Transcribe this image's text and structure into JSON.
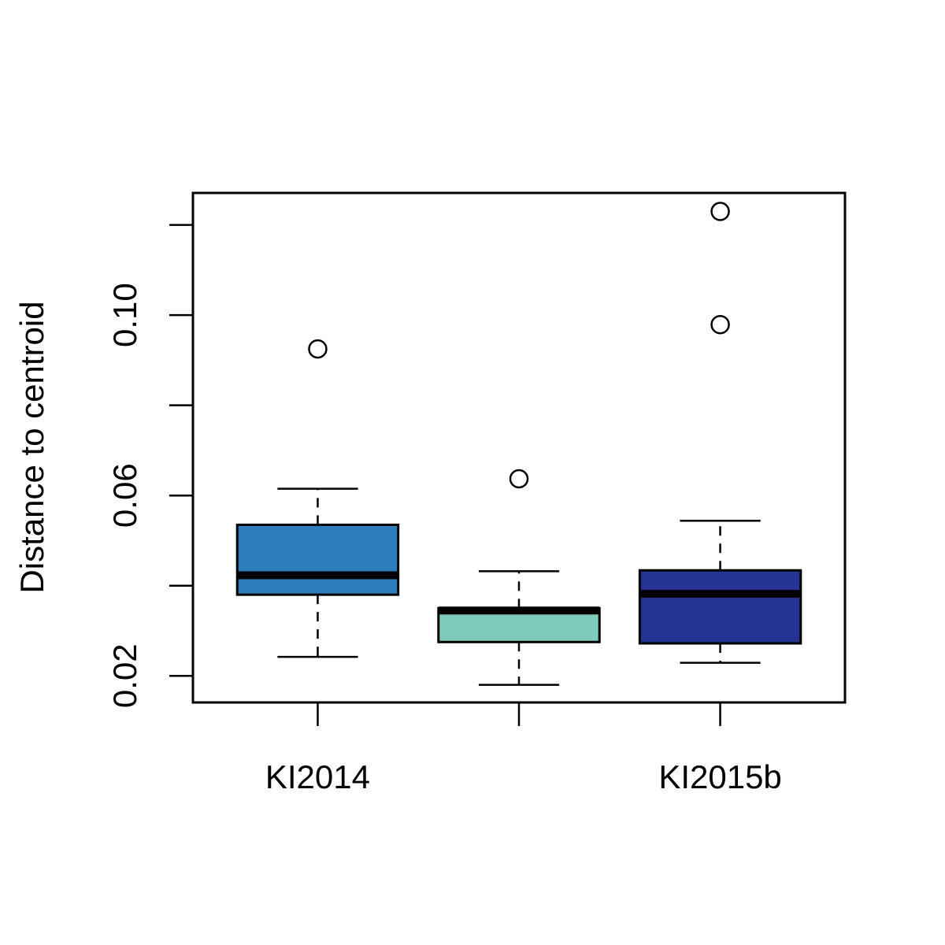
{
  "chart_data": {
    "type": "boxplot",
    "ylabel": "Distance to centroid",
    "ylim": [
      0.0141,
      0.1271
    ],
    "y_ticks": [
      0.02,
      0.04,
      0.06,
      0.08,
      0.1,
      0.12
    ],
    "y_tick_labels": [
      "0.02",
      "",
      "0.06",
      "",
      "0.10",
      ""
    ],
    "x_tick_labels": [
      "KI2014",
      "",
      "KI2015b"
    ],
    "boxes": [
      {
        "label": "KI2014",
        "color": "#2e7ebc",
        "whisker_low": 0.0242,
        "q1": 0.038,
        "median": 0.0423,
        "q3": 0.0535,
        "whisker_high": 0.0615,
        "outliers": [
          0.0925
        ]
      },
      {
        "label": "",
        "color": "#7ecbbb",
        "whisker_low": 0.018,
        "q1": 0.0275,
        "median": 0.0345,
        "q3": 0.035,
        "whisker_high": 0.0432,
        "outliers": [
          0.0637
        ]
      },
      {
        "label": "KI2015b",
        "color": "#253494",
        "whisker_low": 0.0229,
        "q1": 0.0272,
        "median": 0.0382,
        "q3": 0.0434,
        "whisker_high": 0.0544,
        "outliers": [
          0.0979,
          0.123
        ]
      }
    ]
  }
}
